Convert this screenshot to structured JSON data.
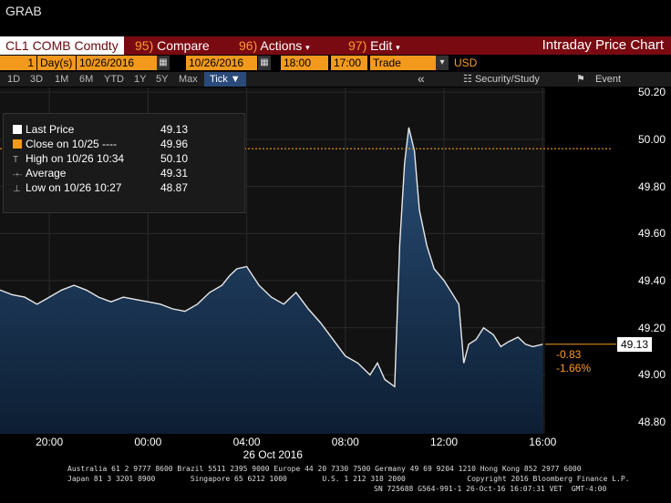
{
  "header": {
    "title": "GRAB"
  },
  "toolbar": {
    "ticker": "CL1 COMB Comdty",
    "compare": {
      "num": "95)",
      "label": "Compare"
    },
    "actions": {
      "num": "96)",
      "label": "Actions"
    },
    "edit": {
      "num": "97)",
      "label": "Edit"
    },
    "chart_title": "Intraday Price Chart"
  },
  "range": {
    "count": "1",
    "unit": "Day(s)",
    "start_date": "10/26/2016",
    "end_date": "10/26/2016",
    "start_time": "18:00",
    "end_time": "17:00",
    "type": "Trade",
    "currency": "USD"
  },
  "timeframes": [
    "1D",
    "3D",
    "1M",
    "6M",
    "YTD",
    "1Y",
    "5Y",
    "Max"
  ],
  "tick_label": "Tick ▼",
  "tools": {
    "collapse": "«",
    "security_study": "Security/Study",
    "event": "Event"
  },
  "legend": [
    {
      "label": "Last Price",
      "value": "49.13",
      "color": "#ffffff"
    },
    {
      "label": "Close on 10/25 ----",
      "value": "49.96",
      "color": "#f39a1d"
    },
    {
      "label": "High on 10/26 10:34",
      "value": "50.10",
      "glyph": "T"
    },
    {
      "label": "Average",
      "value": "49.31",
      "glyph": "-+-"
    },
    {
      "label": "Low on 10/26 10:27",
      "value": "48.87",
      "glyph": "⊥"
    }
  ],
  "last_price_label": "49.13",
  "change": {
    "abs": "-0.83",
    "pct": "-1.66%"
  },
  "chart_data": {
    "type": "line",
    "title": "",
    "date_label": "26 Oct 2016",
    "ylim": [
      48.75,
      50.22
    ],
    "y_ticks": [
      "48.80",
      "49.00",
      "49.20",
      "49.40",
      "49.60",
      "49.80",
      "50.00",
      "50.20"
    ],
    "x_ticks": [
      "20:00",
      "00:00",
      "04:00",
      "08:00",
      "12:00",
      "16:00"
    ],
    "xlim": [
      -6,
      16.1
    ],
    "previous_close": 49.96,
    "series": [
      {
        "x": [
          -6,
          -5.5,
          -5,
          -4.5,
          -4,
          -3.5,
          -3,
          -2.5,
          -2,
          -1.5,
          -1,
          -0.5,
          0,
          0.5,
          1,
          1.5,
          2,
          2.5,
          3,
          3.3,
          3.6,
          4,
          4.5,
          5,
          5.5,
          6,
          6.5,
          7,
          7.5,
          8,
          8.5,
          9,
          9.3,
          9.6,
          10,
          10.2,
          10.4,
          10.57,
          10.8,
          11,
          11.3,
          11.6,
          12,
          12.3,
          12.6,
          12.8,
          13,
          13.3,
          13.6,
          14,
          14.3,
          14.6,
          15,
          15.3,
          15.6,
          16
        ],
        "y": [
          49.36,
          49.34,
          49.33,
          49.3,
          49.33,
          49.36,
          49.38,
          49.36,
          49.33,
          49.31,
          49.33,
          49.32,
          49.31,
          49.3,
          49.28,
          49.27,
          49.3,
          49.35,
          49.38,
          49.42,
          49.45,
          49.46,
          49.38,
          49.33,
          49.3,
          49.35,
          49.28,
          49.22,
          49.15,
          49.08,
          49.05,
          49.0,
          49.05,
          48.98,
          48.95,
          49.55,
          49.9,
          50.05,
          49.95,
          49.7,
          49.55,
          49.45,
          49.4,
          49.35,
          49.3,
          49.05,
          49.13,
          49.15,
          49.2,
          49.17,
          49.12,
          49.14,
          49.16,
          49.13,
          49.12,
          49.13
        ]
      }
    ]
  },
  "footer": {
    "line1": "Australia 61 2 9777 8600 Brazil 5511 2395 9000 Europe 44 20 7330 7500 Germany 49 69 9204 1210 Hong Kong 852 2977 6000",
    "line2": "Japan 81 3 3201 8900        Singapore 65 6212 1000        U.S. 1 212 318 2000              Copyright 2016 Bloomberg Finance L.P.",
    "line3": "SN 725688 G564-991-1 26-Oct-16 16:07:31 VET  GMT-4:00"
  }
}
